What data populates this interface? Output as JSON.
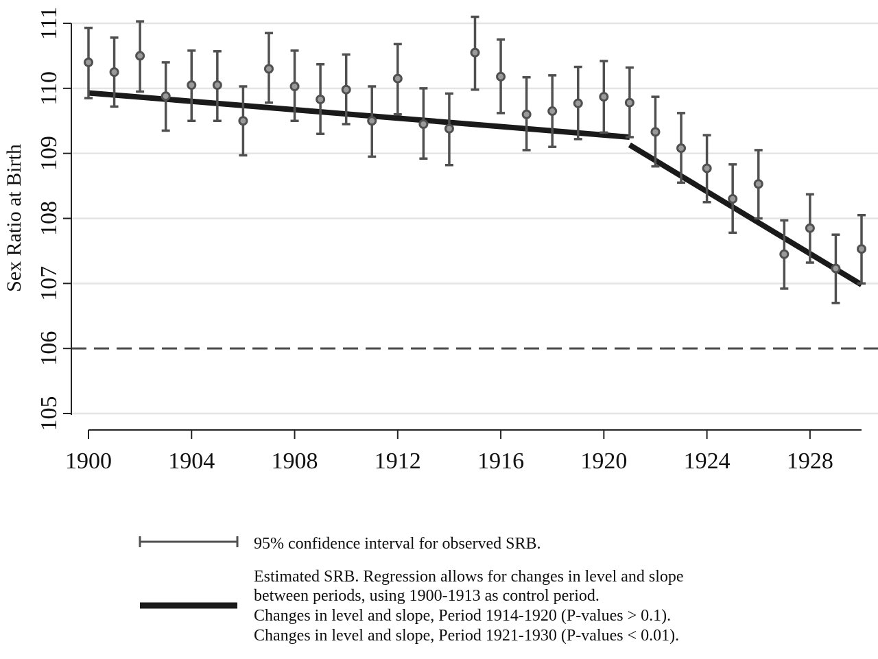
{
  "chart_data": {
    "type": "scatter",
    "title": "",
    "xlabel": "",
    "ylabel": "Sex Ratio at Birth",
    "xlim": [
      1900,
      1930
    ],
    "ylim": [
      105,
      111
    ],
    "x_ticks": [
      "1900",
      "1904",
      "1908",
      "1912",
      "1916",
      "1920",
      "1924",
      "1928"
    ],
    "y_ticks": [
      "105",
      "106",
      "107",
      "108",
      "109",
      "110",
      "111"
    ],
    "grid": "horizontal",
    "reference_line": {
      "y": 106,
      "style": "dashed"
    },
    "observed": {
      "x": [
        1900,
        1901,
        1902,
        1903,
        1904,
        1905,
        1906,
        1907,
        1908,
        1909,
        1910,
        1911,
        1912,
        1913,
        1914,
        1915,
        1916,
        1917,
        1918,
        1919,
        1920,
        1921,
        1922,
        1923,
        1924,
        1925,
        1926,
        1927,
        1928,
        1929,
        1930
      ],
      "y": [
        110.4,
        110.25,
        110.5,
        109.88,
        110.05,
        110.05,
        109.5,
        110.3,
        110.03,
        109.83,
        109.98,
        109.5,
        110.15,
        109.45,
        109.38,
        110.55,
        110.18,
        109.6,
        109.65,
        109.77,
        109.87,
        109.78,
        109.33,
        109.08,
        108.77,
        108.3,
        108.53,
        107.45,
        107.85,
        107.23,
        107.53
      ],
      "ci_low": [
        109.85,
        109.72,
        109.95,
        109.35,
        109.5,
        109.5,
        108.97,
        109.78,
        109.5,
        109.3,
        109.45,
        108.95,
        109.6,
        108.92,
        108.82,
        109.98,
        109.62,
        109.05,
        109.1,
        109.22,
        109.32,
        109.25,
        108.8,
        108.55,
        108.25,
        107.78,
        108.0,
        106.92,
        107.32,
        106.7,
        107.0
      ],
      "ci_high": [
        110.93,
        110.78,
        111.03,
        110.4,
        110.58,
        110.57,
        110.03,
        110.85,
        110.58,
        110.37,
        110.52,
        110.03,
        110.68,
        110.0,
        109.92,
        111.1,
        110.75,
        110.17,
        110.2,
        110.33,
        110.42,
        110.32,
        109.87,
        109.62,
        109.28,
        108.83,
        109.05,
        107.97,
        108.37,
        107.75,
        108.05
      ]
    },
    "fitted": [
      {
        "x": [
          1900,
          1921
        ],
        "y": [
          109.93,
          109.25
        ]
      },
      {
        "x": [
          1921,
          1930
        ],
        "y": [
          109.13,
          106.98
        ]
      }
    ],
    "legend": {
      "placement": "bottom",
      "ci_label": "95% confidence interval for observed SRB.",
      "fit_lines": [
        "Estimated SRB. Regression allows for changes in level and slope",
        "between periods, using 1900-1913 as control period.",
        "Changes in level and slope, Period 1914-1920 (P-values > 0.1).",
        "Changes in level and slope, Period 1921-1930 (P-values < 0.01)."
      ]
    },
    "colors": {
      "marker": "#505050",
      "fit": "#1a1a1a",
      "grid": "#e4e4e4",
      "axis": "#222222"
    }
  }
}
